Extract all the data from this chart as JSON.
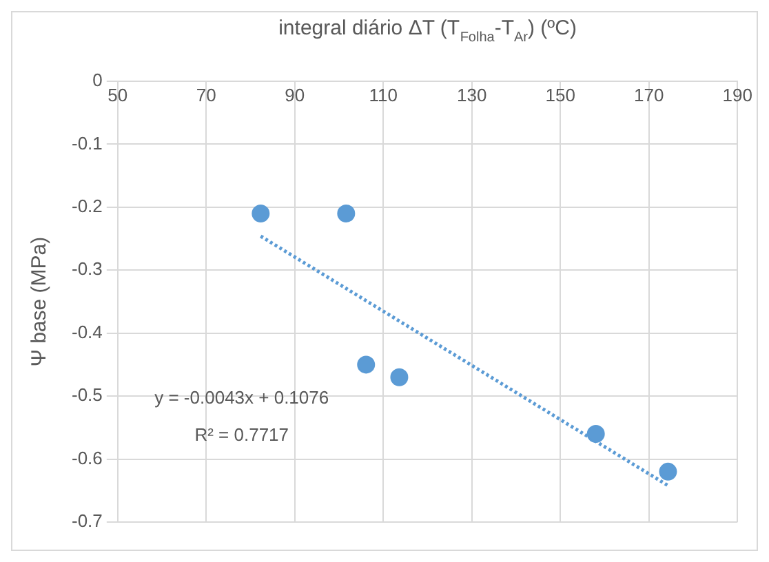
{
  "chart_data": {
    "type": "scatter",
    "xlabel": "integral diário ΔT (T$_{Folha}$-T$_{Ar}$) (ºC)",
    "ylabel": "Ψ base (MPa)",
    "x": [
      82.3,
      101.6,
      106.1,
      113.6,
      158,
      174.3
    ],
    "series": [
      {
        "color": "#5b9bd5",
        "values": [
          -0.21,
          -0.21,
          -0.45,
          -0.47,
          -0.56,
          -0.62
        ],
        "marker": "circle"
      },
      {
        "type": "line",
        "color": "#5b9bd5",
        "x": [
          82.3,
          174.3
        ],
        "values": [
          -0.246,
          -0.642
        ],
        "line_style": "dotted",
        "marker": "none"
      }
    ],
    "xlim": [
      50,
      190
    ],
    "xticks": [
      50,
      70,
      90,
      110,
      130,
      150,
      170,
      190
    ],
    "ylim": [
      -0.7,
      0
    ],
    "yticks": [
      0,
      -0.1,
      -0.2,
      -0.3,
      -0.4,
      -0.5,
      -0.6,
      -0.7
    ],
    "grid": true,
    "legend": false,
    "annotations": [
      "y = -0.0043x + 0.1076",
      "R² = 0.7717"
    ]
  }
}
